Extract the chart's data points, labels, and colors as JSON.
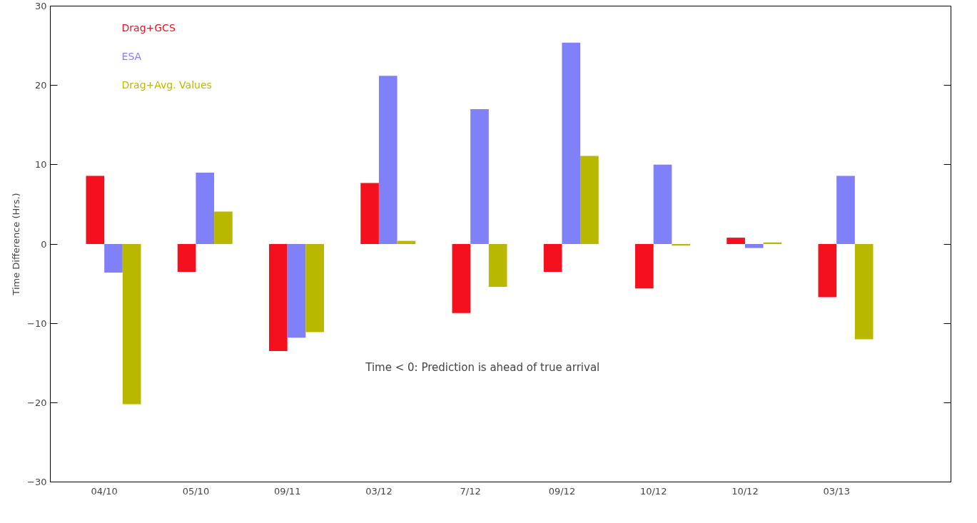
{
  "chart_data": {
    "type": "bar",
    "ylabel": "Time Difference (Hrs.)",
    "categories": [
      "04/10",
      "05/10",
      "09/11",
      "03/12",
      "7/12",
      "09/12",
      "10/12",
      "10/12",
      "03/13"
    ],
    "series": [
      {
        "name": "Drag+GCS",
        "color": "#f5101e",
        "values": [
          8.6,
          -3.5,
          -13.5,
          7.7,
          -8.7,
          -3.5,
          -5.6,
          0.8,
          -6.7
        ]
      },
      {
        "name": "ESA",
        "color": "#8080f8",
        "values": [
          -3.6,
          9.0,
          -11.8,
          21.2,
          17.0,
          25.4,
          10.0,
          -0.5,
          8.6
        ]
      },
      {
        "name": "Drag+Avg. Values",
        "color": "#b8b800",
        "values": [
          -20.2,
          4.1,
          -11.1,
          0.4,
          -5.4,
          11.1,
          -0.2,
          0.2,
          -12.0
        ]
      }
    ],
    "ylim": [
      -30,
      30
    ],
    "yticks": [
      -30,
      -20,
      -10,
      0,
      10,
      20,
      30
    ],
    "annotations": [
      "Time < 0: Prediction is ahead of true arrival"
    ],
    "legend": "top left",
    "grid": false
  }
}
